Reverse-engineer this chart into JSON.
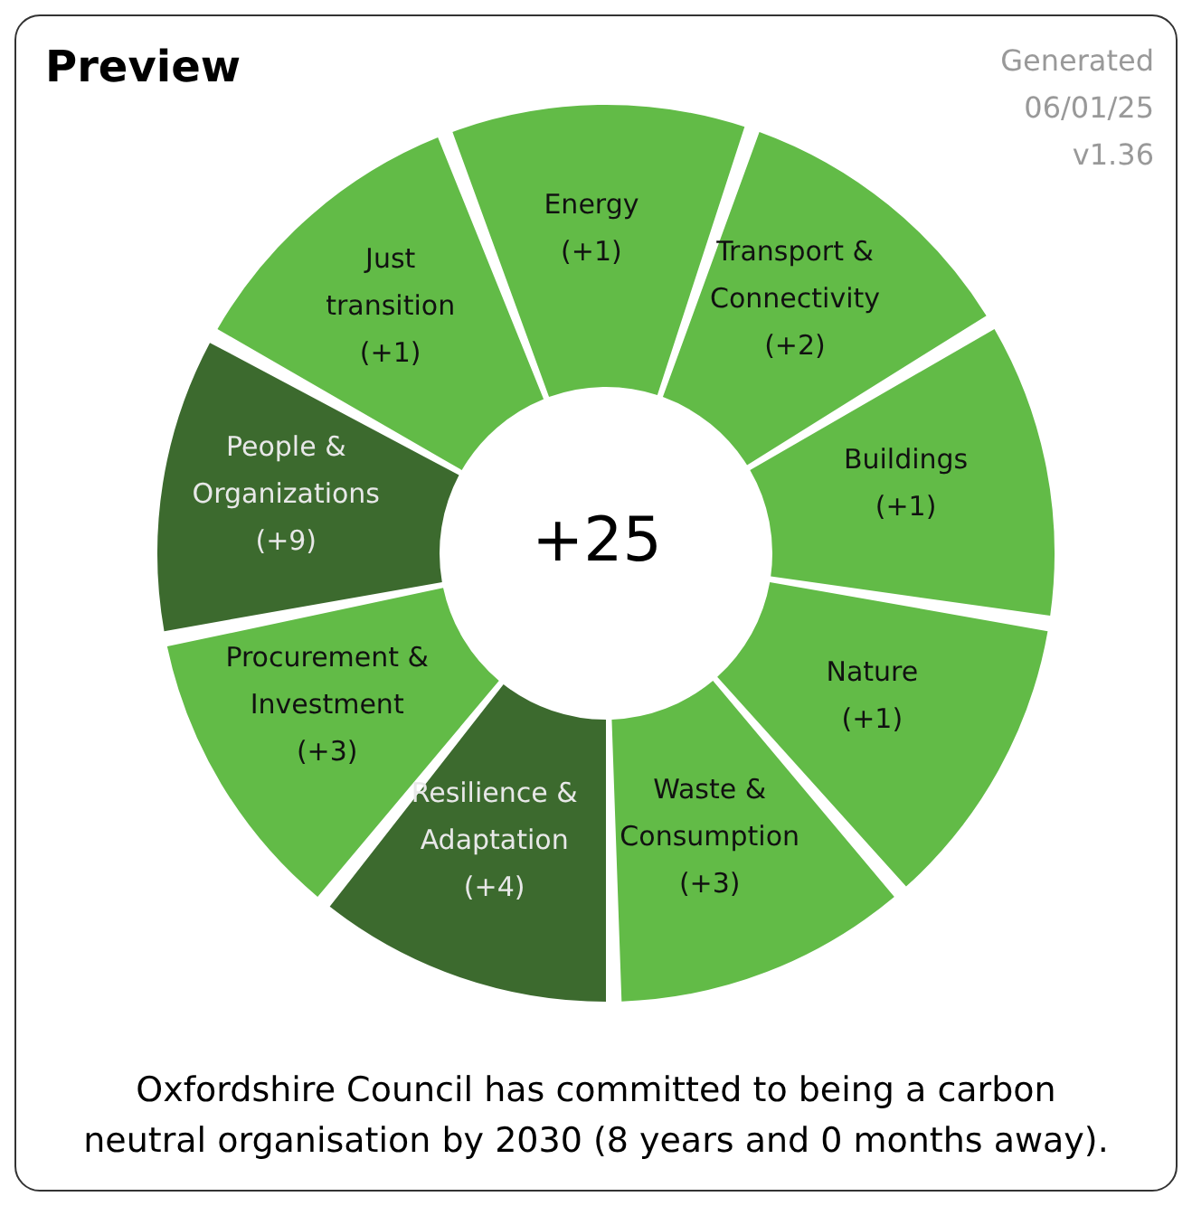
{
  "chart_data": {
    "type": "other",
    "title": "Preview",
    "categories": [
      "Energy",
      "Transport & Connectivity",
      "Buildings",
      "Nature",
      "Waste & Consumption",
      "Resilience & Adaptation",
      "Procurement & Investment",
      "People & Organizations",
      "Just transition"
    ],
    "values": [
      1,
      2,
      1,
      1,
      3,
      4,
      3,
      9,
      1
    ],
    "value_labels": [
      "(+1)",
      "(+2)",
      "(+1)",
      "(+1)",
      "(+3)",
      "(+4)",
      "(+3)",
      "(+9)",
      "(+1)"
    ],
    "colors": [
      "#62bb47",
      "#62bb47",
      "#62bb47",
      "#62bb47",
      "#62bb47",
      "#3c6a2e",
      "#62bb47",
      "#3c6a2e",
      "#62bb47"
    ],
    "totals": [
      "+25"
    ],
    "annotations": [
      "Generated 06/01/25 v1.36",
      "Oxfordshire Council has committed to being a carbon neutral organisation by 2030 (8 years and 0 months away)."
    ]
  }
}
